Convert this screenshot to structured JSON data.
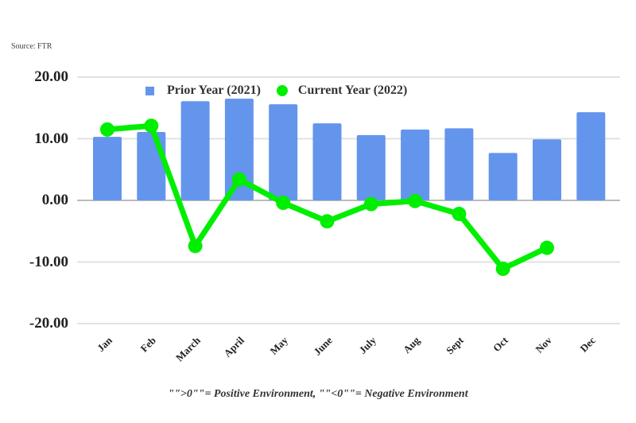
{
  "chart_data": {
    "type": "bar",
    "title": "",
    "source": "Source: FTR",
    "categories": [
      "Jan",
      "Feb",
      "March",
      "April",
      "May",
      "June",
      "July",
      "Aug",
      "Sept",
      "Oct",
      "Nov",
      "Dec"
    ],
    "series": [
      {
        "name": "Prior Year (2021)",
        "type": "bar",
        "color": "#6495ed",
        "values": [
          10.3,
          11.1,
          16.1,
          16.5,
          15.6,
          12.5,
          10.6,
          11.5,
          11.7,
          7.7,
          9.9,
          14.3
        ]
      },
      {
        "name": "Current Year (2022)",
        "type": "line",
        "color": "#00ee00",
        "values": [
          11.5,
          12.1,
          -7.4,
          3.4,
          -0.4,
          -3.4,
          -0.6,
          -0.1,
          -2.2,
          -11.1,
          -7.7,
          null
        ]
      }
    ],
    "yticks": [
      "20.00",
      "10.00",
      "0.00",
      "-10.00",
      "-20.00"
    ],
    "ylim": [
      -20,
      20
    ],
    "xlabel": "",
    "ylabel": "",
    "grid": true,
    "legend_position": "top",
    "footnote": "\"\">0\"\"= Positive Environment, \"\"<0\"\"= Negative Environment"
  }
}
